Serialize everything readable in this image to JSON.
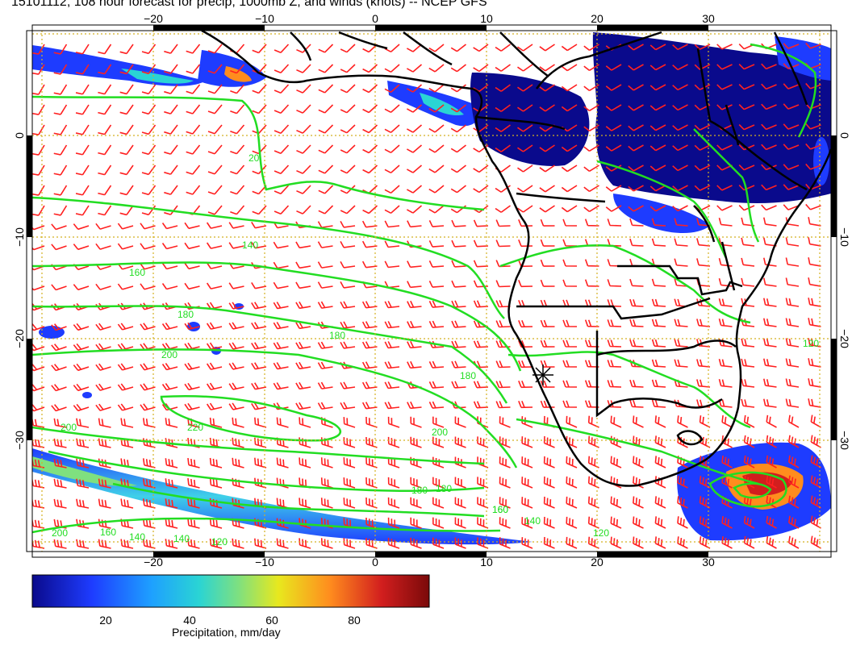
{
  "title": "15101112, 108 hour forecast for precip, 1000mb Z, and winds (knots) -- NCEP GFS",
  "x_ticks": [
    "−20",
    "−10",
    "0",
    "10",
    "20",
    "30"
  ],
  "y_ticks": [
    "0",
    "−10",
    "−20",
    "−30"
  ],
  "contour_labels": [
    "20",
    "140",
    "160",
    "180",
    "180",
    "200",
    "200",
    "220",
    "200",
    "180",
    "160",
    "140",
    "120",
    "140",
    "160",
    "180",
    "120",
    "200",
    "160",
    "180",
    "140",
    "120"
  ],
  "colorbar": {
    "ticks": [
      "20",
      "40",
      "60",
      "80"
    ],
    "label": "Precipitation, mm/day",
    "colors": [
      "#0a0a8c",
      "#1e3cff",
      "#1ea0ff",
      "#2ad4d4",
      "#7fe07f",
      "#e8e81e",
      "#ff8c1e",
      "#d21e1e",
      "#7a0a0a"
    ]
  },
  "colors": {
    "contour": "#22dd22",
    "barbs": "#ff2020",
    "grid": "#d4b020",
    "coast": "#000000"
  }
}
